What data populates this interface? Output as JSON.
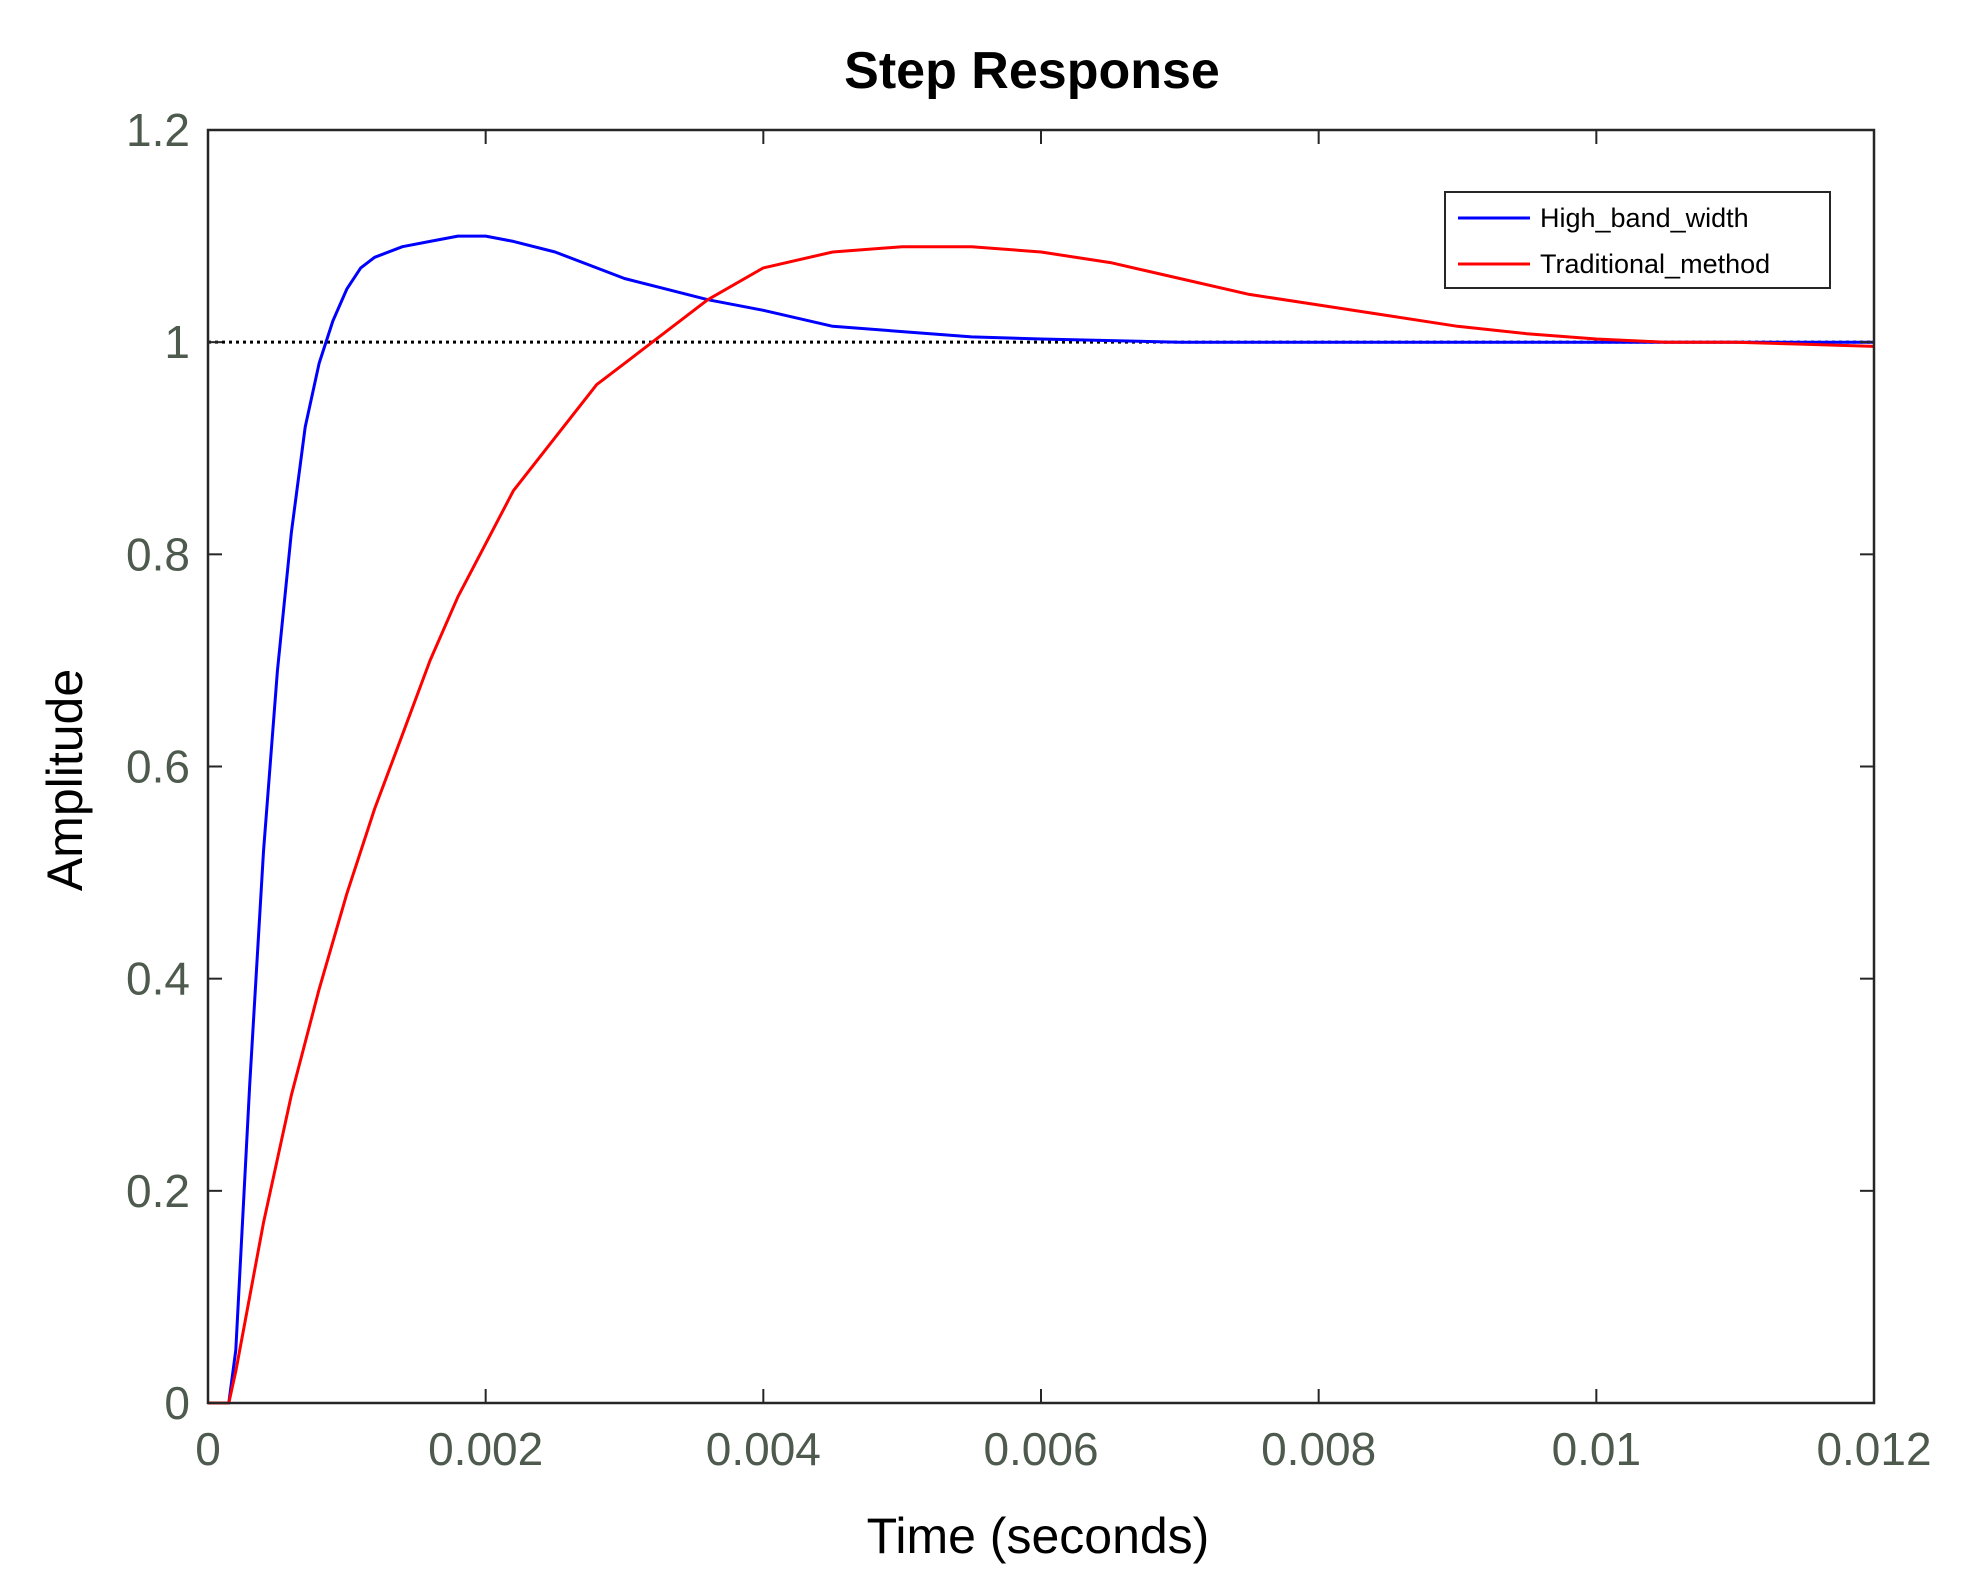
{
  "chart_data": {
    "type": "line",
    "title": "Step Response",
    "xlabel": "Time (seconds)",
    "ylabel": "Amplitude",
    "xlim": [
      0,
      0.012
    ],
    "ylim": [
      0,
      1.2
    ],
    "xticks": [
      0,
      0.002,
      0.004,
      0.006,
      0.008,
      0.01,
      0.012
    ],
    "xtick_labels": [
      "0",
      "0.002",
      "0.004",
      "0.006",
      "0.008",
      "0.01",
      "0.012"
    ],
    "yticks": [
      0,
      0.2,
      0.4,
      0.6,
      0.8,
      1,
      1.2
    ],
    "ytick_labels": [
      "0",
      "0.2",
      "0.4",
      "0.6",
      "0.8",
      "1",
      "1.2"
    ],
    "grid": false,
    "legend_position": "top-right",
    "reference_line": {
      "y": 1,
      "style": "dotted",
      "color": "#000000"
    },
    "series": [
      {
        "name": "High_band_width",
        "color": "#0000ff",
        "x": [
          0,
          0.00015,
          0.0002,
          0.0003,
          0.0004,
          0.0005,
          0.0006,
          0.0007,
          0.0008,
          0.0009,
          0.001,
          0.0011,
          0.0012,
          0.0014,
          0.0016,
          0.0018,
          0.002,
          0.0022,
          0.0025,
          0.0028,
          0.003,
          0.0033,
          0.0036,
          0.004,
          0.0045,
          0.005,
          0.0055,
          0.006,
          0.007,
          0.008,
          0.009,
          0.01,
          0.011,
          0.012
        ],
        "y": [
          0,
          0,
          0.05,
          0.3,
          0.52,
          0.69,
          0.82,
          0.92,
          0.98,
          1.02,
          1.05,
          1.07,
          1.08,
          1.09,
          1.095,
          1.1,
          1.1,
          1.095,
          1.085,
          1.07,
          1.06,
          1.05,
          1.04,
          1.03,
          1.015,
          1.01,
          1.005,
          1.003,
          1.0,
          1.0,
          1.0,
          1.0,
          1.0,
          1.0
        ]
      },
      {
        "name": "Traditional_method",
        "color": "#ff0000",
        "x": [
          0,
          0.00015,
          0.0002,
          0.0004,
          0.0006,
          0.0008,
          0.001,
          0.0012,
          0.0014,
          0.0016,
          0.0018,
          0.002,
          0.0022,
          0.0025,
          0.0028,
          0.003,
          0.0033,
          0.0036,
          0.004,
          0.0045,
          0.005,
          0.0055,
          0.006,
          0.0065,
          0.007,
          0.0075,
          0.008,
          0.0085,
          0.009,
          0.0095,
          0.01,
          0.0105,
          0.011,
          0.0115,
          0.012
        ],
        "y": [
          0,
          0,
          0.03,
          0.17,
          0.29,
          0.39,
          0.48,
          0.56,
          0.63,
          0.7,
          0.76,
          0.81,
          0.86,
          0.91,
          0.96,
          0.98,
          1.01,
          1.04,
          1.07,
          1.085,
          1.09,
          1.09,
          1.085,
          1.075,
          1.06,
          1.045,
          1.035,
          1.025,
          1.015,
          1.008,
          1.003,
          1.0,
          1.0,
          0.998,
          0.996
        ]
      }
    ]
  }
}
